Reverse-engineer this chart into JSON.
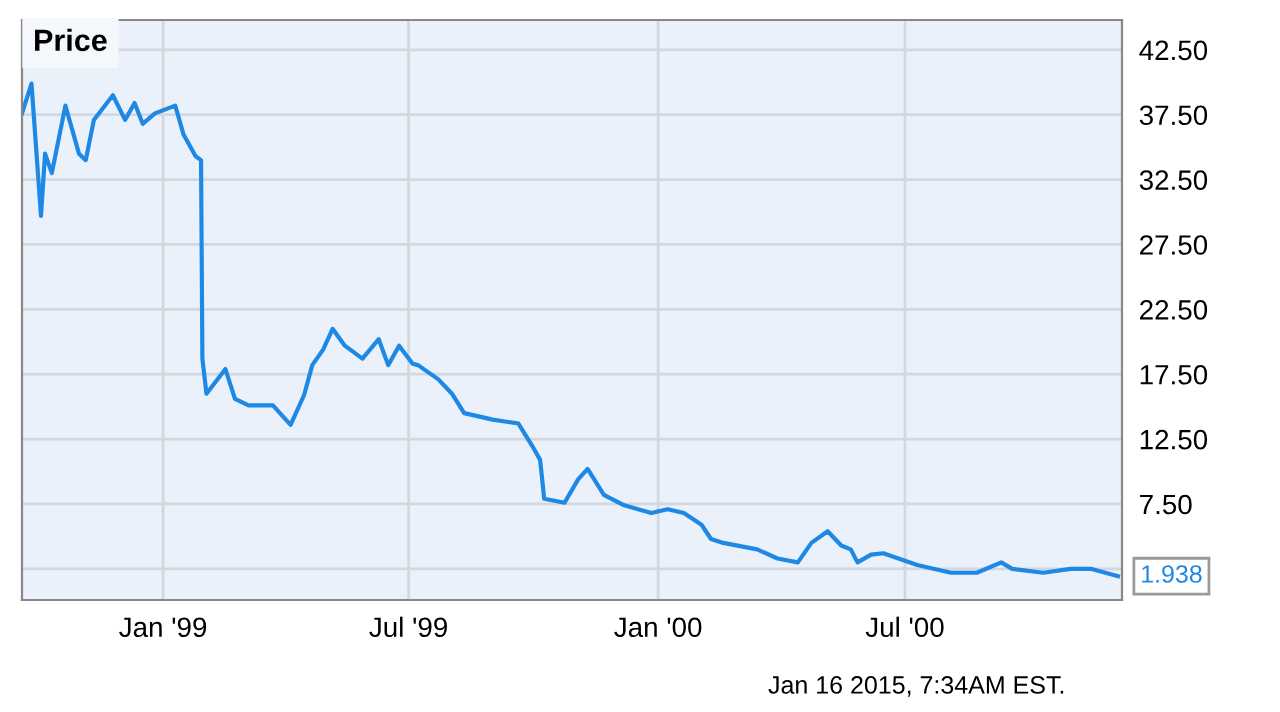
{
  "chart_data": {
    "type": "line",
    "title": "Price",
    "x": [
      "1998-09-19",
      "1998-09-26",
      "1998-10-03",
      "1998-10-06",
      "1998-10-11",
      "1998-10-21",
      "1998-10-31",
      "1998-11-05",
      "1998-11-11",
      "1998-11-25",
      "1998-12-04",
      "1998-12-11",
      "1998-12-17",
      "1998-12-26",
      "1999-01-10",
      "1999-01-16",
      "1999-01-25",
      "1999-01-29",
      "1999-01-30",
      "1999-02-02",
      "1999-02-16",
      "1999-02-23",
      "1999-03-05",
      "1999-03-23",
      "1999-04-05",
      "1999-04-15",
      "1999-04-21",
      "1999-04-29",
      "1999-05-06",
      "1999-05-15",
      "1999-05-28",
      "1999-06-09",
      "1999-06-16",
      "1999-06-24",
      "1999-07-04",
      "1999-07-08",
      "1999-07-23",
      "1999-08-02",
      "1999-08-11",
      "1999-09-01",
      "1999-09-20",
      "1999-09-30",
      "1999-10-06",
      "1999-10-09",
      "1999-10-24",
      "1999-11-03",
      "1999-11-10",
      "1999-11-22",
      "1999-12-07",
      "1999-12-27",
      "2000-01-08",
      "2000-01-20",
      "2000-02-02",
      "2000-02-09",
      "2000-02-18",
      "2000-03-14",
      "2000-03-29",
      "2000-04-13",
      "2000-04-23",
      "2000-05-05",
      "2000-05-15",
      "2000-05-22",
      "2000-05-27",
      "2000-06-06",
      "2000-06-15",
      "2000-07-10",
      "2000-08-04",
      "2000-08-23",
      "2000-09-10",
      "2000-09-18",
      "2000-10-11",
      "2000-10-31",
      "2000-11-15",
      "2000-12-05"
    ],
    "series": [
      {
        "color": "#1e88e5",
        "values": [
          37.6,
          39.9,
          29.7,
          34.5,
          33,
          38.2,
          34.5,
          34,
          37.1,
          39,
          37.1,
          38.4,
          36.8,
          37.6,
          38.2,
          36,
          34.3,
          34,
          18.7,
          16,
          17.9,
          15.6,
          15.1,
          15.1,
          13.6,
          15.9,
          18.2,
          19.4,
          21,
          19.7,
          18.7,
          20.2,
          18.2,
          19.7,
          18.3,
          18.2,
          17.1,
          16,
          14.5,
          14,
          13.7,
          12,
          10.9,
          7.9,
          7.6,
          9.4,
          10.2,
          8.2,
          7.4,
          6.8,
          7.1,
          6.8,
          5.9,
          4.8,
          4.5,
          4,
          3.3,
          3,
          4.5,
          5.4,
          4.3,
          4,
          3,
          3.6,
          3.7,
          2.8,
          2.2,
          2.2,
          3,
          2.5,
          2.2,
          2.5,
          2.5,
          1.938
        ],
        "value_labels": [
          null,
          null,
          null,
          null,
          null,
          null,
          null,
          null,
          null,
          null,
          null,
          null,
          null,
          null,
          null,
          null,
          null,
          null,
          null,
          null,
          null,
          null,
          null,
          null,
          null,
          null,
          null,
          null,
          null,
          null,
          null,
          null,
          null,
          null,
          null,
          null,
          null,
          null,
          null,
          null,
          null,
          null,
          null,
          null,
          null,
          null,
          null,
          null,
          null,
          null,
          null,
          null,
          null,
          null,
          null,
          null,
          null,
          null,
          null,
          null,
          null,
          null,
          null,
          null,
          null,
          null,
          null,
          null,
          null,
          null,
          null,
          null,
          null,
          "1.938"
        ]
      }
    ],
    "xlim": [
      "1998-09-19",
      "2000-12-08"
    ],
    "xticks": [
      {
        "value": "1999-01-01",
        "label": "Jan '99"
      },
      {
        "value": "1999-07-01",
        "label": "Jul '99"
      },
      {
        "value": "2000-01-01",
        "label": "Jan '00"
      },
      {
        "value": "2000-07-01",
        "label": "Jul '00"
      }
    ],
    "ylim": [
      0.1,
      44.8
    ],
    "yticks": [
      {
        "value": 2.5,
        "label": null
      },
      {
        "value": 7.5,
        "label": "7.50"
      },
      {
        "value": 12.5,
        "label": "12.50"
      },
      {
        "value": 17.5,
        "label": "17.50"
      },
      {
        "value": 22.5,
        "label": "22.50"
      },
      {
        "value": 27.5,
        "label": "27.50"
      },
      {
        "value": 32.5,
        "label": "32.50"
      },
      {
        "value": 37.5,
        "label": "37.50"
      },
      {
        "value": 42.5,
        "label": "42.50"
      }
    ],
    "grid": true,
    "marker": "none",
    "line_style": "solid",
    "annotations": [
      "Jan 16 2015, 7:34AM EST."
    ]
  }
}
